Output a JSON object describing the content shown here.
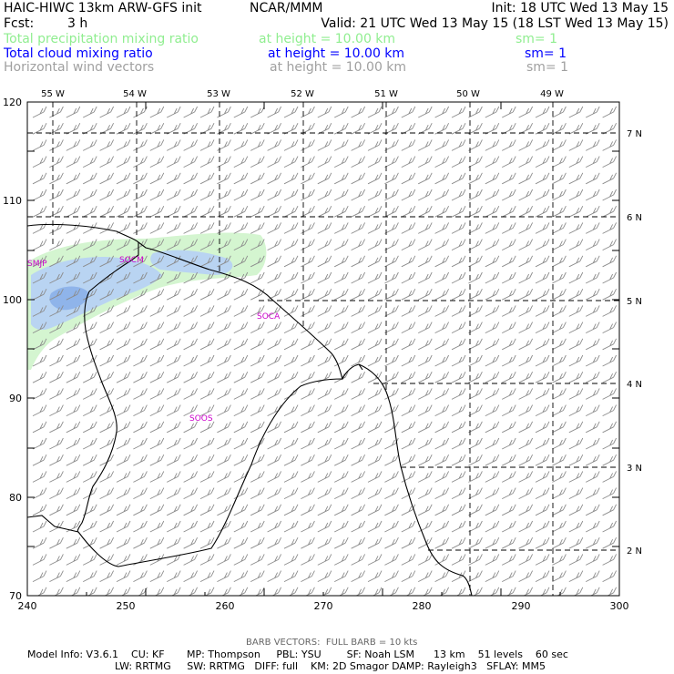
{
  "header": {
    "model_title": "HAIC-HIWC 13km ARW-GFS init",
    "org": "NCAR/MMM",
    "init": "Init: 18 UTC Wed 13 May 15",
    "fcst_label": "Fcst:",
    "fcst_value": "3 h",
    "valid": "Valid: 21 UTC Wed 13 May 15 (18 LST Wed 13 May 15)"
  },
  "fields": [
    {
      "name": "Total precipitation mixing ratio",
      "height": "at height = 10.00 km",
      "smooth": "sm= 1",
      "color": "#90ee90"
    },
    {
      "name": "Total cloud mixing ratio",
      "height": "at height = 10.00 km",
      "smooth": "sm= 1",
      "color": "#0000ff"
    },
    {
      "name": "Horizontal wind vectors",
      "height": "at height = 10.00 km",
      "smooth": "sm= 1",
      "color": "#a0a0a0"
    }
  ],
  "map": {
    "x_ticks": [
      "240",
      "250",
      "260",
      "270",
      "280",
      "290",
      "300"
    ],
    "y_ticks": [
      "70",
      "80",
      "90",
      "100",
      "110",
      "120"
    ],
    "lon_labels": [
      "55 W",
      "54 W",
      "53 W",
      "52 W",
      "51 W",
      "50 W",
      "49 W"
    ],
    "lat_labels": [
      "7 N",
      "6 N",
      "5 N",
      "4 N",
      "3 N",
      "2 N"
    ],
    "stations": [
      "SMJP",
      "SOCM",
      "SOCA",
      "SOOS"
    ],
    "precip_color": "#d4f5d0",
    "cloud_color": "#b9d4f2",
    "cloud_core_color": "#8fb4ea",
    "barb_color": "#8c8c8c",
    "station_color": "#cc00cc"
  },
  "footer": {
    "barb_note": "BARB VECTORS:  FULL BARB = 10 kts",
    "line1": "Model Info: V3.6.1    CU: KF       MP: Thompson     PBL: YSU        SF: Noah LSM      13 km    51 levels    60 sec",
    "line2": "LW: RRTMG     SW: RRTMG   DIFF: full    KM: 2D Smagor DAMP: Rayleigh3   SFLAY: MM5"
  }
}
